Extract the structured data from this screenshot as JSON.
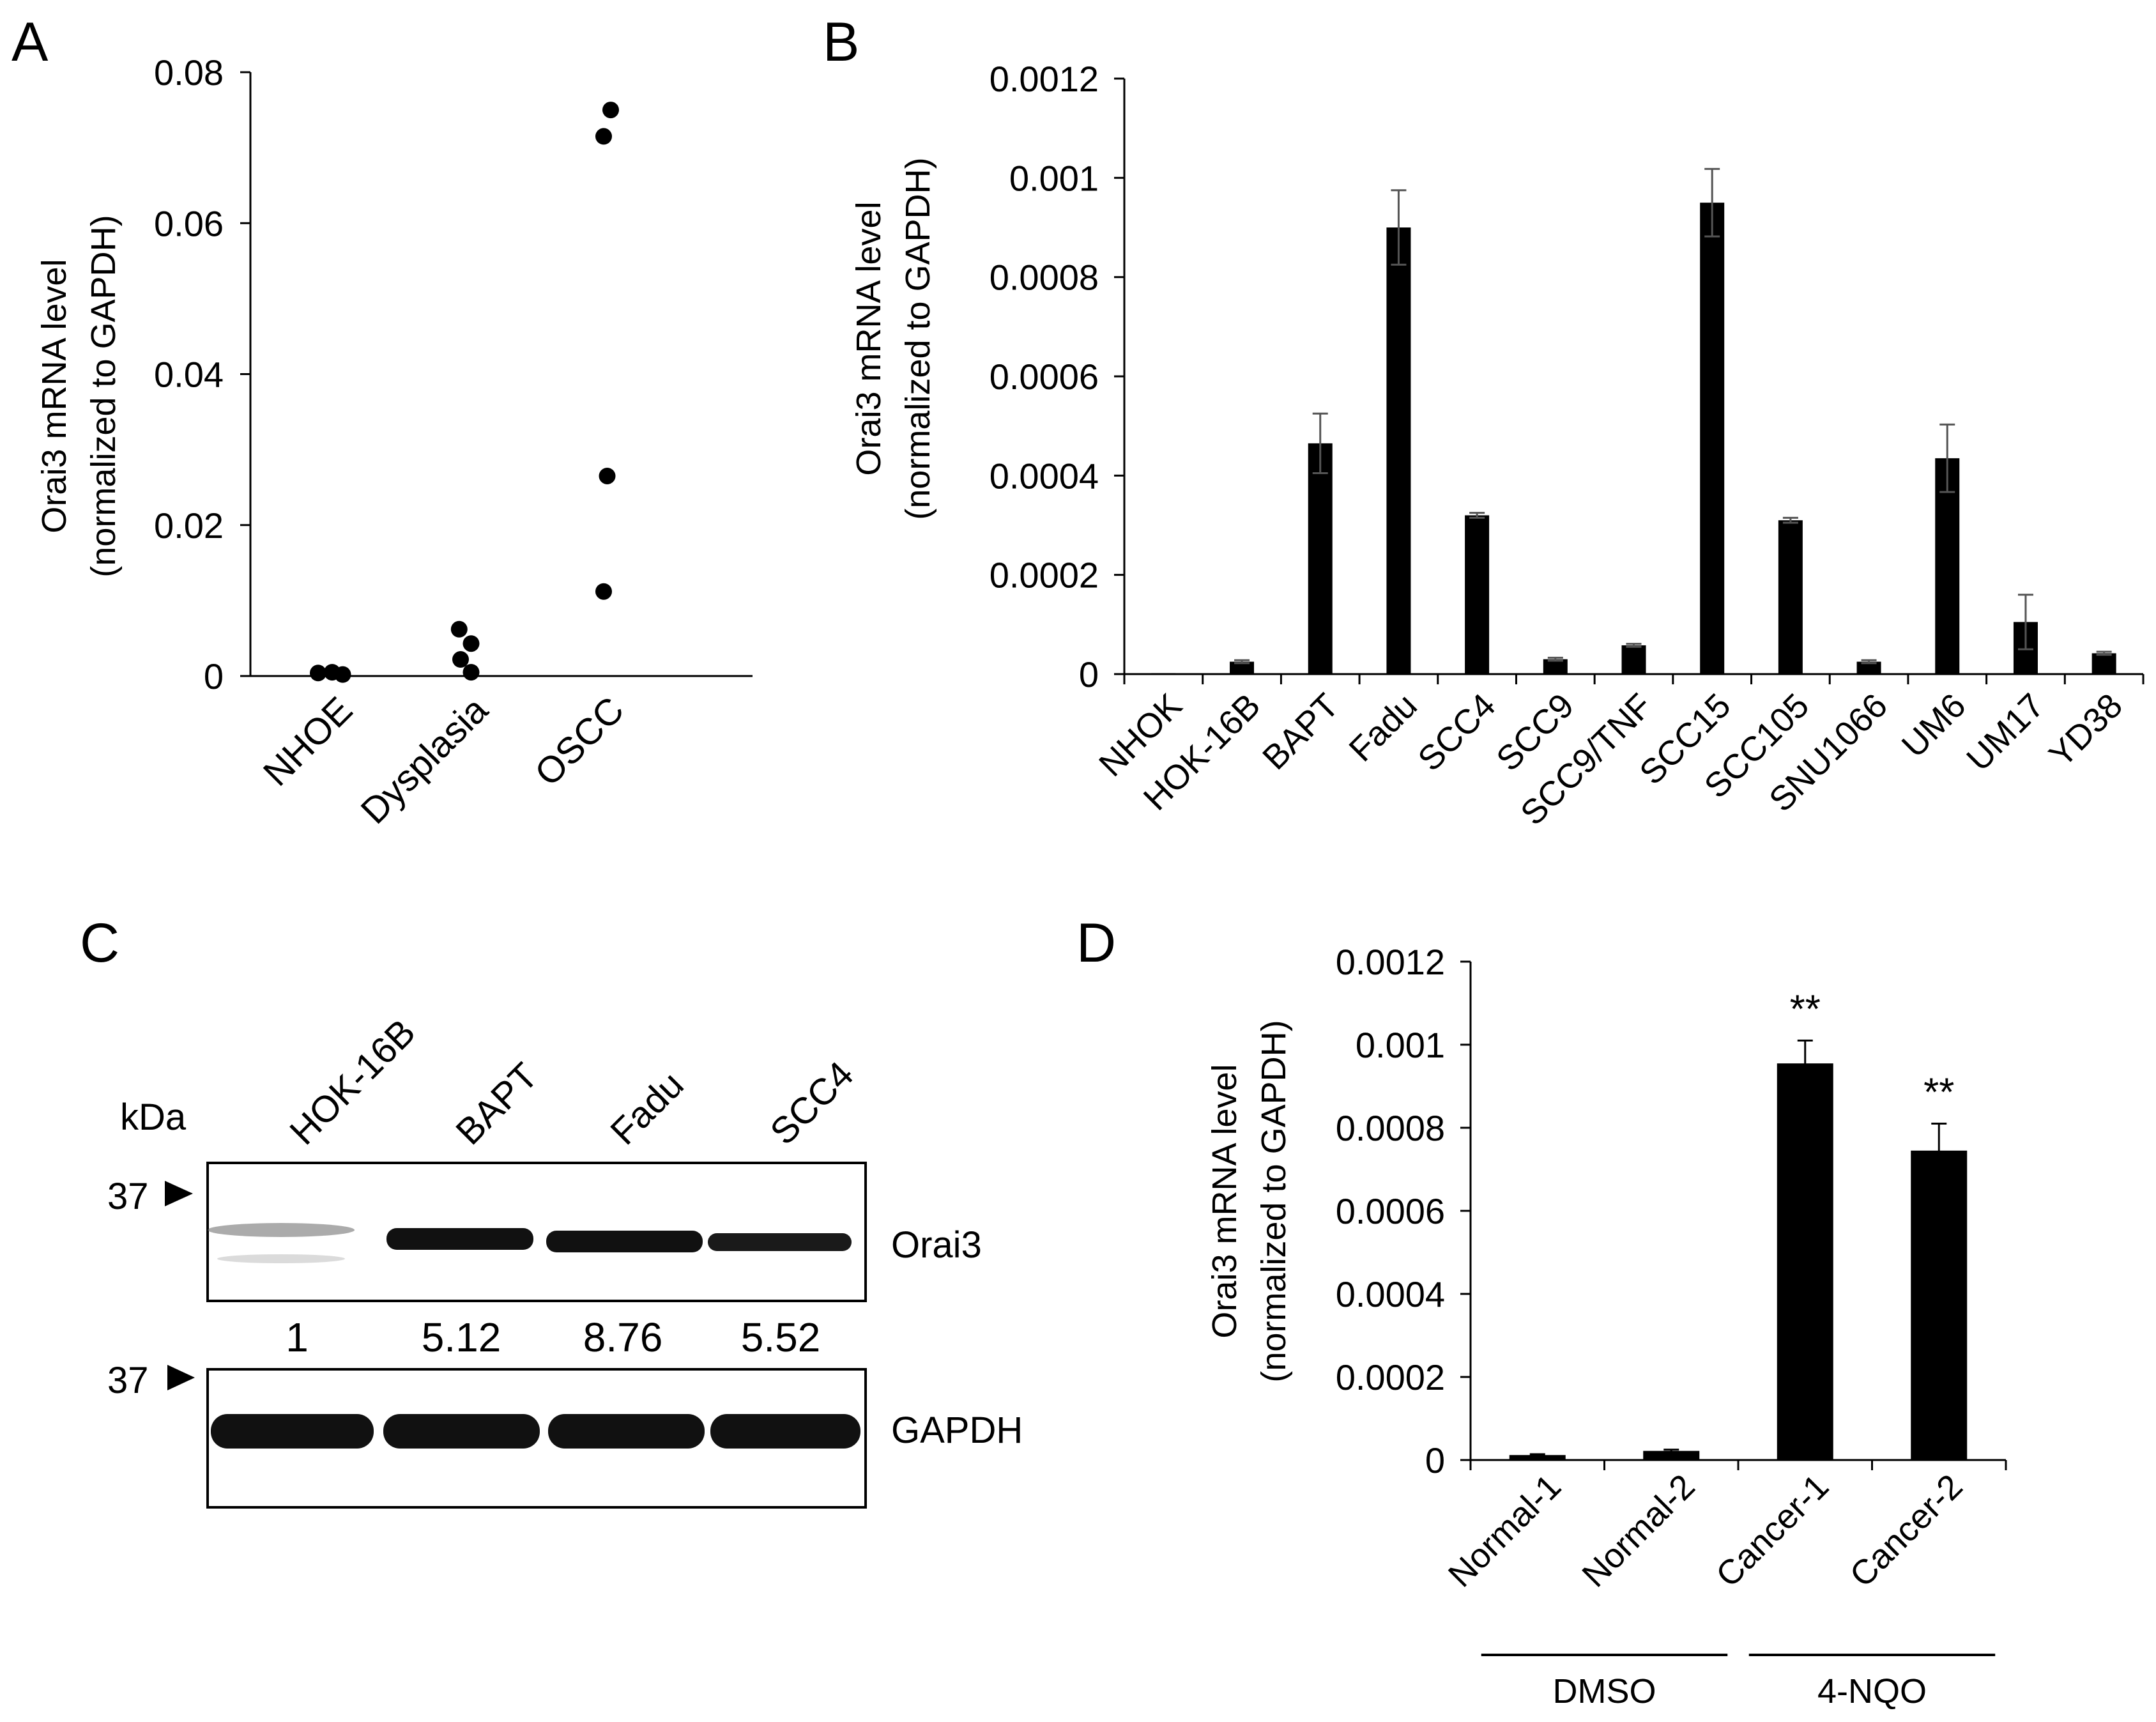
{
  "panel_labels": {
    "a": "A",
    "b": "B",
    "c": "C",
    "d": "D"
  },
  "chart_data": [
    {
      "panel": "A",
      "type": "scatter",
      "ylabel_line1": "Orai3 mRNA level",
      "ylabel_line2": "(normalized to GAPDH)",
      "categories": [
        "NHOE",
        "Dysplasia",
        "OSCC"
      ],
      "yticks": [
        "0",
        "0.02",
        "0.04",
        "0.06",
        "0.08"
      ],
      "ylim": [
        0,
        0.08
      ],
      "points": [
        {
          "category": 0,
          "offset": -0.2,
          "value": 0.0004
        },
        {
          "category": 0,
          "offset": 0.0,
          "value": 0.0005
        },
        {
          "category": 0,
          "offset": 0.15,
          "value": 0.0002
        },
        {
          "category": 1,
          "offset": -0.12,
          "value": 0.0062
        },
        {
          "category": 1,
          "offset": 0.05,
          "value": 0.0043
        },
        {
          "category": 1,
          "offset": -0.1,
          "value": 0.0022
        },
        {
          "category": 1,
          "offset": 0.05,
          "value": 0.0005
        },
        {
          "category": 2,
          "offset": 0.1,
          "value": 0.075
        },
        {
          "category": 2,
          "offset": 0.0,
          "value": 0.0715
        },
        {
          "category": 2,
          "offset": 0.05,
          "value": 0.0265
        },
        {
          "category": 2,
          "offset": 0.0,
          "value": 0.0112
        }
      ]
    },
    {
      "panel": "B",
      "type": "bar",
      "ylabel_line1": "Orai3 mRNA level",
      "ylabel_line2": "(normalized to GAPDH)",
      "categories": [
        "NHOK",
        "HOK-16B",
        "BAPT",
        "Fadu",
        "SCC4",
        "SCC9",
        "SCC9/TNF",
        "SCC15",
        "SCC105",
        "SNU1066",
        "UM6",
        "UM17",
        "YD38"
      ],
      "values": [
        2e-06,
        2.5e-05,
        0.000465,
        0.0009,
        0.00032,
        3e-05,
        5.8e-05,
        0.00095,
        0.00031,
        2.5e-05,
        0.000435,
        0.000105,
        4.2e-05
      ],
      "errors": [
        0,
        3e-06,
        6e-05,
        7.5e-05,
        5e-06,
        3e-06,
        3e-06,
        6.8e-05,
        5e-06,
        3e-06,
        6.8e-05,
        5.5e-05,
        3e-06
      ],
      "yticks": [
        "0",
        "0.0002",
        "0.0004",
        "0.0006",
        "0.0008",
        "0.001",
        "0.0012"
      ],
      "ylim": [
        0,
        0.0012
      ]
    },
    {
      "panel": "C",
      "type": "western-blot",
      "kda_label": "kDa",
      "marker_label": "37",
      "lanes": [
        "HOK-16B",
        "BAPT",
        "Fadu",
        "SCC4"
      ],
      "quantification": [
        "1",
        "5.12",
        "8.76",
        "5.52"
      ],
      "blots": [
        "Orai3",
        "GAPDH"
      ]
    },
    {
      "panel": "D",
      "type": "bar",
      "ylabel_line1": "Orai3 mRNA level",
      "ylabel_line2": "(normalized to GAPDH)",
      "categories": [
        "Normal-1",
        "Normal-2",
        "Cancer-1",
        "Cancer-2"
      ],
      "values": [
        1.2e-05,
        2.2e-05,
        0.000955,
        0.000745
      ],
      "errors": [
        2e-06,
        3e-06,
        5.5e-05,
        6.5e-05
      ],
      "significance": [
        "",
        "",
        "**",
        "**"
      ],
      "yticks": [
        "0",
        "0.0002",
        "0.0004",
        "0.0006",
        "0.0008",
        "0.001",
        "0.0012"
      ],
      "ylim": [
        0,
        0.0012
      ],
      "groups": [
        {
          "label": "DMSO",
          "first": 0,
          "last": 1
        },
        {
          "label": "4-NQO",
          "first": 2,
          "last": 3
        }
      ]
    }
  ]
}
